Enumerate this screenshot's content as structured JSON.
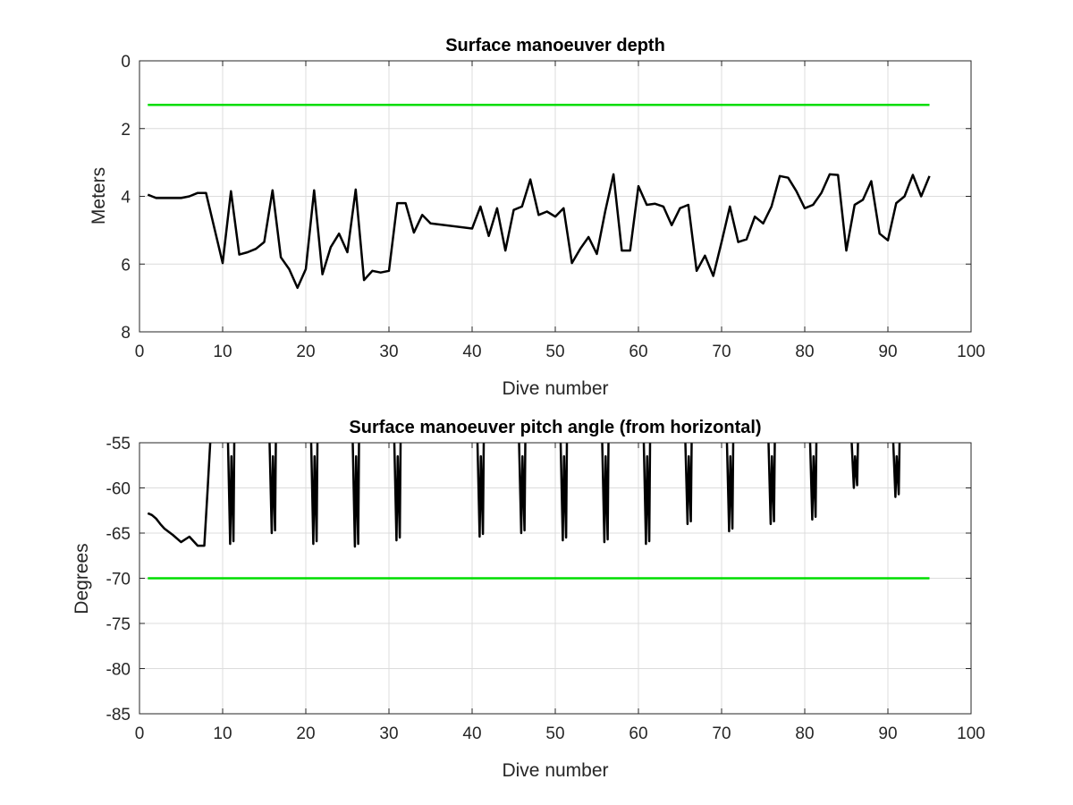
{
  "colors": {
    "background": "#ffffff",
    "axes": "#262626",
    "grid": "#dcdcdc",
    "data_line": "#000000",
    "limit_line": "#00dd00"
  },
  "chart_data": [
    {
      "type": "line",
      "title": "Surface manoeuver depth",
      "xlabel": "Dive number",
      "ylabel": "Meters",
      "xlim": [
        0,
        100
      ],
      "ylim": [
        0,
        8
      ],
      "y_reversed": true,
      "grid": true,
      "xticks": [
        "0",
        "10",
        "20",
        "30",
        "40",
        "50",
        "60",
        "70",
        "80",
        "90",
        "100"
      ],
      "yticks": [
        "0",
        "2",
        "4",
        "6",
        "8"
      ],
      "series": [
        {
          "style": "data",
          "x": [
            1,
            2,
            3,
            4,
            5,
            6,
            7,
            8,
            10,
            11,
            12,
            13,
            14,
            15,
            16,
            17,
            18,
            19,
            20,
            21,
            22,
            23,
            24,
            25,
            26,
            27,
            28,
            29,
            30,
            31,
            32,
            33,
            34,
            35,
            40,
            41,
            42,
            43,
            44,
            45,
            46,
            47,
            48,
            49,
            50,
            51,
            52,
            53,
            54,
            55,
            56,
            57,
            58,
            59,
            60,
            61,
            62,
            63,
            64,
            65,
            66,
            67,
            68,
            69,
            70,
            71,
            72,
            73,
            74,
            75,
            76,
            77,
            78,
            79,
            80,
            81,
            82,
            83,
            84,
            85,
            86,
            87,
            88,
            89,
            90,
            91,
            92,
            93,
            94,
            95
          ],
          "y": [
            3.95,
            4.05,
            4.05,
            4.05,
            4.05,
            4.0,
            3.9,
            3.9,
            5.97,
            3.85,
            5.72,
            5.65,
            5.55,
            5.35,
            3.82,
            5.8,
            6.15,
            6.7,
            6.15,
            3.82,
            6.3,
            5.5,
            5.1,
            5.65,
            3.8,
            6.47,
            6.2,
            6.25,
            6.2,
            4.2,
            4.2,
            5.07,
            4.55,
            4.8,
            4.95,
            4.3,
            5.17,
            4.35,
            5.6,
            4.4,
            4.3,
            3.5,
            4.55,
            4.45,
            4.6,
            4.35,
            5.97,
            5.55,
            5.2,
            5.7,
            4.45,
            3.35,
            5.6,
            5.6,
            3.7,
            4.25,
            4.22,
            4.3,
            4.85,
            4.35,
            4.25,
            6.2,
            5.75,
            6.35,
            5.35,
            4.3,
            5.35,
            5.27,
            4.6,
            4.8,
            4.3,
            3.4,
            3.45,
            3.85,
            4.35,
            4.25,
            3.9,
            3.35,
            3.37,
            5.6,
            4.25,
            4.1,
            3.55,
            5.1,
            5.3,
            4.2,
            4.0,
            3.37,
            4.0,
            3.4
          ]
        },
        {
          "style": "limit",
          "x": [
            1,
            95
          ],
          "y": [
            1.3,
            1.3
          ]
        }
      ]
    },
    {
      "type": "line",
      "title": "Surface manoeuver pitch angle (from horizontal)",
      "xlabel": "Dive number",
      "ylabel": "Degrees",
      "xlim": [
        0,
        100
      ],
      "ylim": [
        -85,
        -55
      ],
      "y_reversed": false,
      "grid": true,
      "xticks": [
        "0",
        "10",
        "20",
        "30",
        "40",
        "50",
        "60",
        "70",
        "80",
        "90",
        "100"
      ],
      "yticks": [
        "-55",
        "-60",
        "-65",
        "-70",
        "-75",
        "-80",
        "-85"
      ],
      "series": [
        {
          "style": "data",
          "x": [
            1,
            1.5,
            2,
            2.5,
            3,
            4,
            5,
            6,
            7,
            7.8,
            8.2,
            8.5
          ],
          "y": [
            -62.8,
            -63.0,
            -63.4,
            -64.0,
            -64.5,
            -65.2,
            -66.0,
            -65.4,
            -66.4,
            -66.4,
            -60.0,
            -55.0
          ]
        }
      ],
      "spikes": [
        {
          "x": 11,
          "min": -66.2
        },
        {
          "x": 16,
          "min": -65.0
        },
        {
          "x": 21,
          "min": -66.2
        },
        {
          "x": 26,
          "min": -66.5
        },
        {
          "x": 31,
          "min": -65.8
        },
        {
          "x": 41,
          "min": -65.4
        },
        {
          "x": 46,
          "min": -65.0
        },
        {
          "x": 51,
          "min": -65.8
        },
        {
          "x": 56,
          "min": -66.0
        },
        {
          "x": 61,
          "min": -66.2
        },
        {
          "x": 66,
          "min": -64.0
        },
        {
          "x": 71,
          "min": -64.8
        },
        {
          "x": 76,
          "min": -64.0
        },
        {
          "x": 81,
          "min": -63.5
        },
        {
          "x": 86,
          "min": -60.0
        },
        {
          "x": 91,
          "min": -61.0
        }
      ],
      "limit_series": {
        "style": "limit",
        "x": [
          1,
          95
        ],
        "y": [
          -70,
          -70
        ]
      }
    }
  ]
}
